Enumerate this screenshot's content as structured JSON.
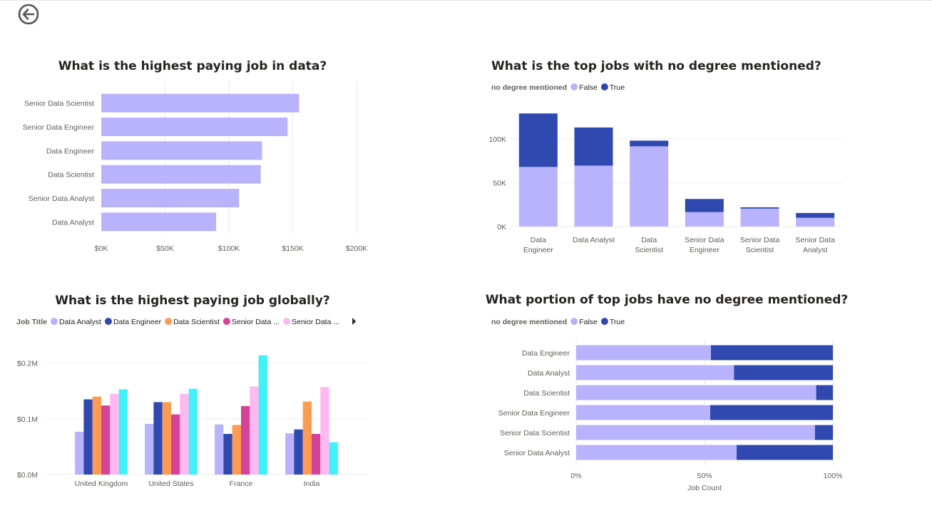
{
  "icons": {
    "back": "back-arrow-icon"
  },
  "chart_data": [
    {
      "id": "c1",
      "type": "bar",
      "orientation": "horizontal",
      "title": "What is the highest  paying job in data?",
      "categories": [
        "Senior Data Scientist",
        "Senior Data Engineer",
        "Data Engineer",
        "Data Scientist",
        "Senior Data Analyst",
        "Data Analyst"
      ],
      "values": [
        155000,
        146000,
        126000,
        125000,
        108000,
        90000
      ],
      "xlim": [
        0,
        200000
      ],
      "xticks": [
        {
          "v": 0,
          "label": "$0K"
        },
        {
          "v": 50000,
          "label": "$50K"
        },
        {
          "v": 100000,
          "label": "$100K"
        },
        {
          "v": 150000,
          "label": "$150K"
        },
        {
          "v": 200000,
          "label": "$200K"
        }
      ],
      "color": "#b8b3fc",
      "grid": true
    },
    {
      "id": "c2",
      "type": "bar",
      "stacked": true,
      "title": "What is the top jobs with no degree mentioned?",
      "legend": {
        "title": "no degree mentioned",
        "entries": [
          {
            "label": "False",
            "color": "#b8b3fc"
          },
          {
            "label": "True",
            "color": "#2f49b0"
          }
        ],
        "position": "top-left"
      },
      "categories": [
        [
          "Data",
          "Engineer"
        ],
        [
          "Data Analyst"
        ],
        [
          "Data",
          "Scientist"
        ],
        [
          "Senior Data",
          "Engineer"
        ],
        [
          "Senior Data",
          "Scientist"
        ],
        [
          "Senior Data",
          "Analyst"
        ]
      ],
      "series": [
        {
          "name": "False",
          "values": [
            68000,
            69500,
            91500,
            16500,
            20500,
            10000
          ]
        },
        {
          "name": "True",
          "values": [
            61000,
            43500,
            6500,
            15000,
            1500,
            5500
          ]
        }
      ],
      "ylim": [
        0,
        130000
      ],
      "yticks": [
        {
          "v": 0,
          "label": "0K"
        },
        {
          "v": 50000,
          "label": "50K"
        },
        {
          "v": 100000,
          "label": "100K"
        }
      ],
      "grid": true
    },
    {
      "id": "c3",
      "type": "bar",
      "grouped": true,
      "title": "What is the highest  paying job globally?",
      "legend": {
        "title": "Job Title",
        "entries": [
          {
            "label": "Data Analyst",
            "color": "#b8b3fc"
          },
          {
            "label": "Data Engineer",
            "color": "#2f49b0"
          },
          {
            "label": "Data Scientist",
            "color": "#ff9a52"
          },
          {
            "label": "Senior Data ...",
            "color": "#d5429a"
          },
          {
            "label": "Senior Data ...",
            "color": "#ffb8f0"
          }
        ],
        "position": "top-left"
      },
      "categories": [
        "United Kingdom",
        "United States",
        "France",
        "India"
      ],
      "series": [
        {
          "name": "Data Analyst",
          "color": "#b8b3fc",
          "values": [
            77000,
            91000,
            90000,
            74000
          ]
        },
        {
          "name": "Data Engineer",
          "color": "#2f49b0",
          "values": [
            135000,
            130000,
            73000,
            81000
          ]
        },
        {
          "name": "Data Scientist",
          "color": "#ff9a52",
          "values": [
            140000,
            130000,
            89000,
            131000
          ]
        },
        {
          "name": "",
          "color": "#d5429a",
          "values": [
            124000,
            108000,
            123000,
            73000
          ]
        },
        {
          "name": "",
          "color": "#ffb8f0",
          "values": [
            145000,
            145000,
            158000,
            157000
          ]
        },
        {
          "name": "",
          "color": "#41f1f7",
          "values": [
            153000,
            154000,
            214000,
            58000
          ]
        }
      ],
      "ylim": [
        0,
        220000
      ],
      "yticks": [
        {
          "v": 0,
          "label": "$0.0M"
        },
        {
          "v": 100000,
          "label": "$0.1M"
        },
        {
          "v": 200000,
          "label": "$0.2M"
        }
      ],
      "grid": true
    },
    {
      "id": "c4",
      "type": "bar",
      "orientation": "horizontal",
      "stacked": "100%",
      "title": "What portion of top jobs have no degree mentioned?",
      "legend": {
        "title": "no degree mentioned",
        "entries": [
          {
            "label": "False",
            "color": "#b8b3fc"
          },
          {
            "label": "True",
            "color": "#2f49b0"
          }
        ],
        "position": "top-left"
      },
      "categories": [
        "Data Engineer",
        "Data Analyst",
        "Data Scientist",
        "Senior Data Engineer",
        "Senior Data Scientist",
        "Senior Data Analyst"
      ],
      "series": [
        {
          "name": "False",
          "values": [
            52.5,
            61.5,
            93.5,
            52.2,
            93,
            62.5
          ]
        },
        {
          "name": "True",
          "values": [
            47.5,
            38.5,
            6.5,
            47.8,
            7,
            37.5
          ]
        }
      ],
      "xlim": [
        0,
        100
      ],
      "xticks": [
        {
          "v": 0,
          "label": "0%"
        },
        {
          "v": 50,
          "label": "50%"
        },
        {
          "v": 100,
          "label": "100%"
        }
      ],
      "xlabel": "Job Count",
      "grid": true
    }
  ]
}
